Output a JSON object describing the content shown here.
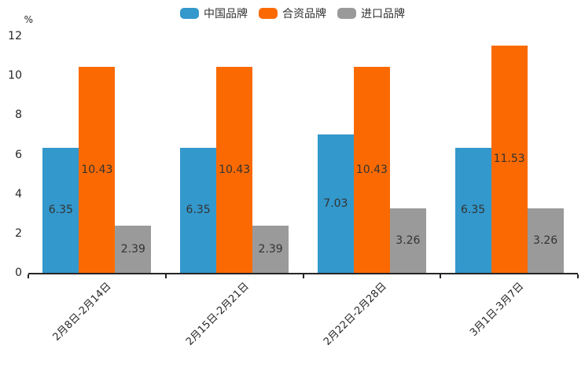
{
  "chart_data": {
    "type": "bar",
    "title": "",
    "xlabel": "",
    "ylabel": "%",
    "ylim": [
      0,
      12
    ],
    "yticks": [
      0,
      2,
      4,
      6,
      8,
      10,
      12
    ],
    "grid": false,
    "legend_position": "top",
    "value_labels": true,
    "value_label_decimals": 2,
    "categories": [
      "2月8日-2月14日",
      "2月15日-2月21日",
      "2月22日-2月28日",
      "3月1日-3月7日"
    ],
    "series": [
      {
        "name": "中国品牌",
        "color": "#3398cc",
        "values": [
          6.35,
          6.35,
          7.03,
          6.35
        ]
      },
      {
        "name": "合资品牌",
        "color": "#fb6a02",
        "values": [
          10.43,
          10.43,
          10.43,
          11.53
        ]
      },
      {
        "name": "进口品牌",
        "color": "#9a9a9a",
        "values": [
          2.39,
          2.39,
          3.26,
          3.26
        ]
      }
    ],
    "colors": {
      "axis": "#262626",
      "tick_label": "#262626",
      "value_label": "#333333",
      "background": "#ffffff"
    }
  }
}
